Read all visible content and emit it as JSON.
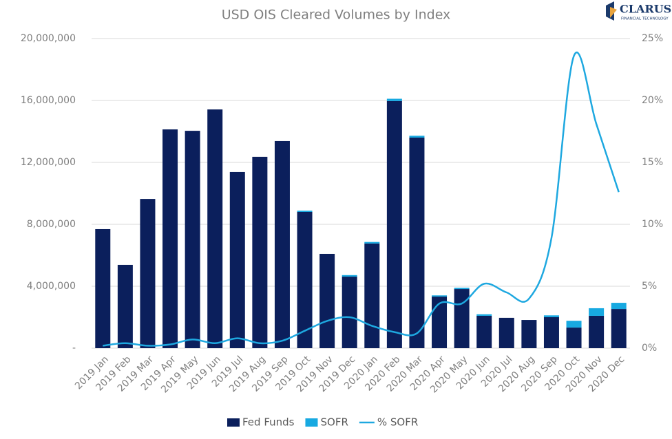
{
  "chart_data": {
    "type": "bar",
    "title": "USD OIS Cleared Volumes by Index",
    "brand": {
      "name": "CLARUS",
      "tagline": "FINANCIAL TECHNOLOGY"
    },
    "categories": [
      "2019 Jan",
      "2019 Feb",
      "2019 Mar",
      "2019 Apr",
      "2019 May",
      "2019 Jun",
      "2019 Jul",
      "2019 Aug",
      "2019 Sep",
      "2019 Oct",
      "2019 Nov",
      "2019 Dec",
      "2020 Jan",
      "2020 Feb",
      "2020 Mar",
      "2020 Apr",
      "2020 May",
      "2020 Jun",
      "2020 Jul",
      "2020 Aug",
      "2020 Sep",
      "2020 Oct",
      "2020 Nov",
      "2020 Dec"
    ],
    "series": [
      {
        "name": "Fed Funds",
        "type": "bar",
        "color": "#0b1f5c",
        "values": [
          7690000,
          5380000,
          9640000,
          14130000,
          14040000,
          15420000,
          11380000,
          12360000,
          13380000,
          8800000,
          6090000,
          4620000,
          6760000,
          15960000,
          13600000,
          3330000,
          3820000,
          2090000,
          1960000,
          1820000,
          2000000,
          1330000,
          2090000,
          2530000
        ]
      },
      {
        "name": "SOFR",
        "type": "bar",
        "color": "#17a9e1",
        "values": [
          0,
          0,
          0,
          0,
          0,
          0,
          0,
          0,
          0,
          80000,
          0,
          100000,
          100000,
          150000,
          120000,
          80000,
          80000,
          100000,
          0,
          0,
          120000,
          440000,
          490000,
          400000
        ]
      },
      {
        "name": "% SOFR",
        "type": "line",
        "axis": "y2",
        "color": "#1ea8e0",
        "values": [
          0.2,
          0.4,
          0.2,
          0.3,
          0.7,
          0.4,
          0.8,
          0.4,
          0.6,
          1.4,
          2.2,
          2.5,
          1.8,
          1.3,
          1.2,
          3.6,
          3.6,
          5.2,
          4.5,
          4.0,
          8.9,
          23.6,
          18.1,
          12.6
        ]
      }
    ],
    "stacked": true,
    "ylim": [
      0,
      20000000
    ],
    "yticks": [
      {
        "value": 0,
        "label": "-"
      },
      {
        "value": 4000000,
        "label": "4,000,000"
      },
      {
        "value": 8000000,
        "label": "8,000,000"
      },
      {
        "value": 12000000,
        "label": "12,000,000"
      },
      {
        "value": 16000000,
        "label": "16,000,000"
      },
      {
        "value": 20000000,
        "label": "20,000,000"
      }
    ],
    "y2lim": [
      0,
      25
    ],
    "y2ticks": [
      {
        "value": 0,
        "label": "0%"
      },
      {
        "value": 5,
        "label": "5%"
      },
      {
        "value": 10,
        "label": "10%"
      },
      {
        "value": 15,
        "label": "15%"
      },
      {
        "value": 20,
        "label": "20%"
      },
      {
        "value": 25,
        "label": "25%"
      }
    ],
    "grid": true,
    "legend": "bottom"
  }
}
